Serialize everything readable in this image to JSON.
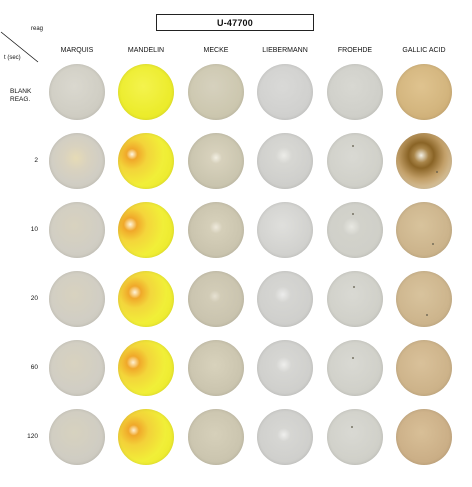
{
  "title": "U-47700",
  "axis": {
    "reagent_label": "reag",
    "time_label": "t (sec)"
  },
  "columns": [
    "MARQUIS",
    "MANDELIN",
    "MECKE",
    "LIEBERMANN",
    "FROEHDE",
    "GALLIC ACID"
  ],
  "rows": [
    "BLANK\nREAG.",
    "2",
    "10",
    "20",
    "60",
    "120"
  ],
  "spot_icon": "circular-reaction-spot",
  "colors": {
    "marquis": "#d3d0c5",
    "mandelin": "#f1f03a",
    "mecke": "#d0cab4",
    "liebermann": "#d3d3cf",
    "froehde": "#d0d0ca",
    "gallic_acid": "#d3b57f",
    "gallic_acid_dark": "#8a6426",
    "mandelin_orange": "#f0a82a",
    "title_border": "#222222"
  }
}
